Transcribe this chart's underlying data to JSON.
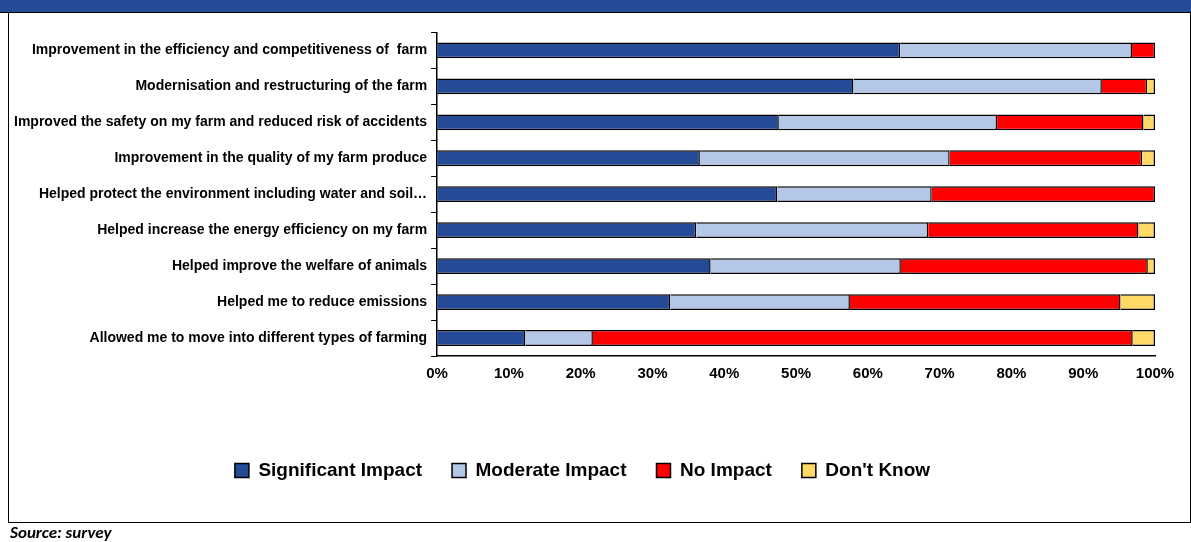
{
  "chart_data": {
    "type": "bar",
    "orientation": "horizontal",
    "stacked": true,
    "categories": [
      "Improvement in the efficiency and competitiveness of  farm",
      "Modernisation and restructuring of the farm",
      "Improved the safety on my farm and reduced risk of accidents",
      "Improvement in the quality of my farm produce",
      "Helped protect the environment including water and soil…",
      "Helped increase the energy efficiency on my farm",
      "Helped improve the welfare of animals",
      "Helped me to reduce emissions",
      "Allowed me to move into different types of farming"
    ],
    "series": [
      {
        "name": "Significant Impact",
        "color": "#264b96",
        "values": [
          64.5,
          58.0,
          47.6,
          36.6,
          47.4,
          36.1,
          38.1,
          32.5,
          12.3
        ]
      },
      {
        "name": "Moderate Impact",
        "color": "#b4c7e7",
        "values": [
          32.3,
          34.6,
          30.4,
          34.8,
          21.5,
          32.3,
          26.5,
          25.0,
          9.4
        ]
      },
      {
        "name": "No Impact",
        "color": "#ff0000",
        "values": [
          3.2,
          6.3,
          20.4,
          26.8,
          31.1,
          29.3,
          34.4,
          37.7,
          75.2
        ]
      },
      {
        "name": "Don't Know",
        "color": "#ffd966",
        "values": [
          0,
          1.1,
          1.6,
          1.8,
          0,
          2.3,
          1.0,
          4.8,
          3.1
        ]
      }
    ],
    "xlim": [
      0,
      100
    ],
    "xticks": [
      {
        "value": 0,
        "label": "0%"
      },
      {
        "value": 10,
        "label": "10%"
      },
      {
        "value": 20,
        "label": "20%"
      },
      {
        "value": 30,
        "label": "30%"
      },
      {
        "value": 40,
        "label": "40%"
      },
      {
        "value": 50,
        "label": "50%"
      },
      {
        "value": 60,
        "label": "60%"
      },
      {
        "value": 70,
        "label": "70%"
      },
      {
        "value": 80,
        "label": "80%"
      },
      {
        "value": 90,
        "label": "90%"
      },
      {
        "value": 100,
        "label": "100%"
      }
    ],
    "grid": false,
    "legend": "bottom",
    "annotations": [
      "Source: survey"
    ]
  }
}
